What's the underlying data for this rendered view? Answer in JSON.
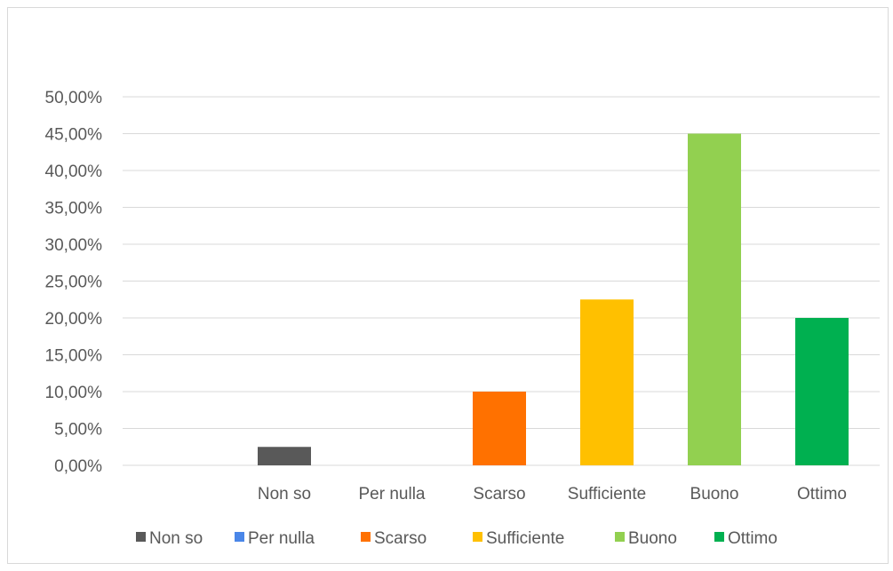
{
  "chart_data": {
    "type": "bar",
    "title": "",
    "xlabel": "",
    "ylabel": "",
    "categories": [
      "Non so",
      "Per nulla",
      "Scarso",
      "Sufficiente",
      "Buono",
      "Ottimo"
    ],
    "values": [
      2.5,
      0,
      10,
      22.5,
      45,
      20
    ],
    "ylim": [
      0,
      50
    ],
    "yticks": [
      0,
      5,
      10,
      15,
      20,
      25,
      30,
      35,
      40,
      45,
      50
    ],
    "ytick_labels": [
      "0,00%",
      "5,00%",
      "10,00%",
      "15,00%",
      "20,00%",
      "25,00%",
      "30,00%",
      "35,00%",
      "40,00%",
      "45,00%",
      "50,00%"
    ],
    "colors": [
      "#595959",
      "#4a86e8",
      "#ff7100",
      "#ffc000",
      "#92d050",
      "#00b050"
    ],
    "legend": {
      "position": "bottom",
      "entries": [
        "Non so",
        "Per nulla",
        "Scarso",
        "Sufficiente",
        "Buono",
        "Ottimo"
      ]
    },
    "grid": true,
    "gridline_color": "#d9d9d9"
  }
}
